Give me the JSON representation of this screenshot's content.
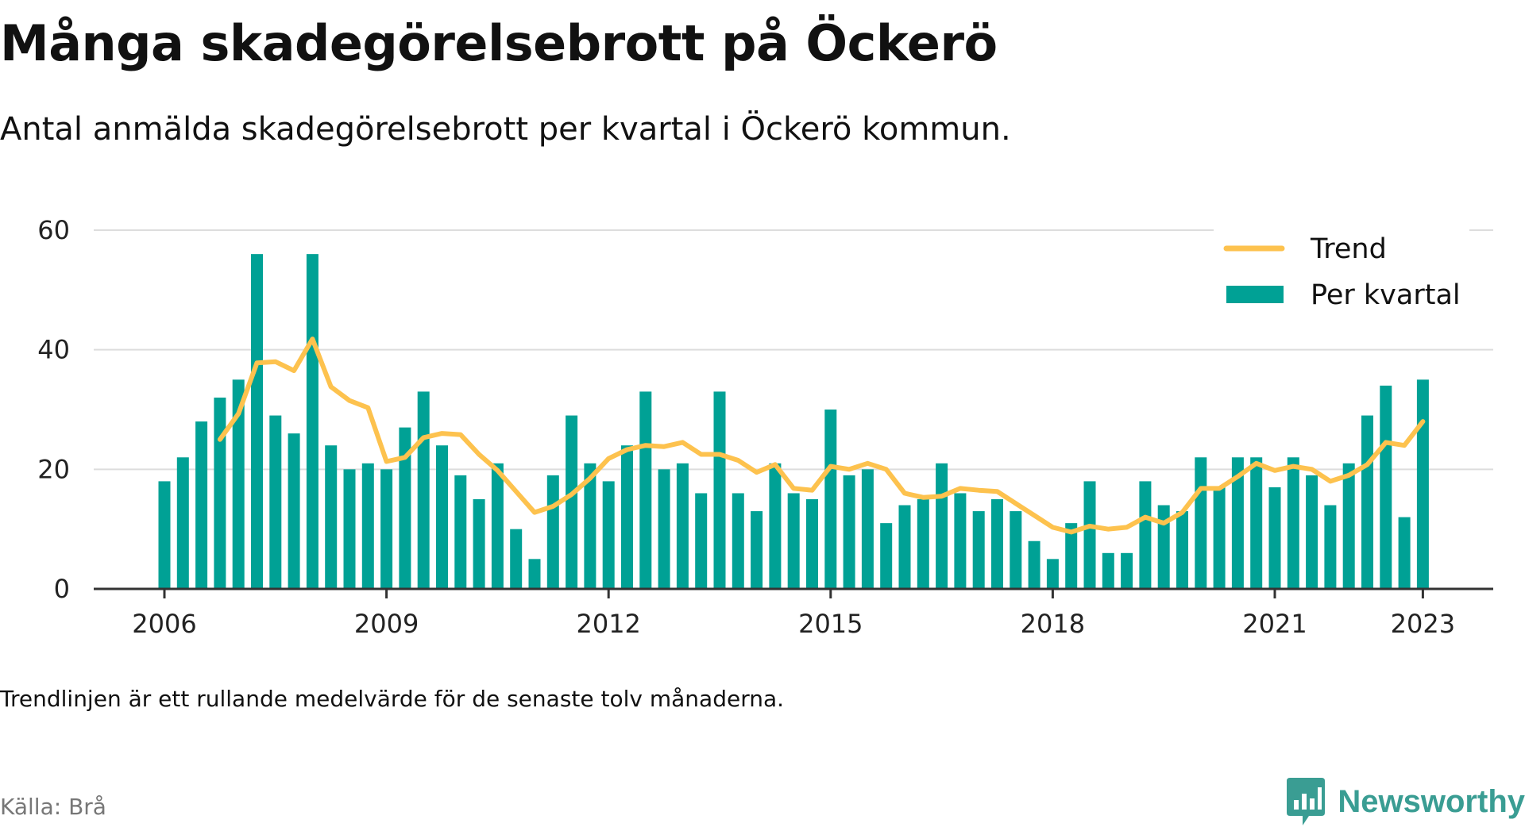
{
  "header": {
    "title": "Många skadegörelsebrott på Öckerö",
    "subtitle": "Antal anmälda skadegörelsebrott per kvartal i Öckerö kommun."
  },
  "footer": {
    "note": "Trendlinjen är ett rullande medelvärde för de senaste tolv månaderna.",
    "source": "Källa: Brå",
    "brand": "Newsworthy"
  },
  "colors": {
    "bars": "#00a195",
    "trend": "#fdc24e",
    "grid": "#dddddd",
    "axis": "#333333",
    "brand": "#3a9d93"
  },
  "chart_data": {
    "type": "bar",
    "x_start": "2006 Q1",
    "x_ticks": [
      "2006",
      "2009",
      "2012",
      "2015",
      "2018",
      "2021",
      "2023"
    ],
    "ylim": [
      0,
      60
    ],
    "y_ticks": [
      0,
      20,
      40,
      60
    ],
    "grid": true,
    "legend_position": "top-right",
    "series": [
      {
        "name": "Per kvartal",
        "type": "bar",
        "values": [
          18,
          22,
          28,
          32,
          35,
          56,
          29,
          26,
          56,
          24,
          20,
          21,
          20,
          27,
          33,
          24,
          19,
          15,
          21,
          10,
          5,
          19,
          29,
          21,
          18,
          24,
          33,
          20,
          21,
          16,
          33,
          16,
          13,
          21,
          16,
          15,
          30,
          19,
          20,
          11,
          14,
          15,
          21,
          16,
          13,
          15,
          13,
          8,
          5,
          11,
          18,
          6,
          6,
          18,
          14,
          13,
          22,
          17,
          22,
          22,
          17,
          22,
          19,
          14,
          21,
          29,
          34,
          12,
          35
        ]
      },
      {
        "name": "Trend",
        "type": "line",
        "values": [
          null,
          null,
          null,
          25,
          29.3,
          37.8,
          38,
          36.5,
          41.8,
          33.8,
          31.5,
          30.3,
          21.3,
          22,
          25.3,
          26,
          25.8,
          22.5,
          19.8,
          16.3,
          12.8,
          13.8,
          15.8,
          18.5,
          21.8,
          23.3,
          24,
          23.8,
          24.5,
          22.5,
          22.5,
          21.5,
          19.5,
          20.8,
          16.8,
          16.5,
          20.5,
          20,
          21,
          20,
          16,
          15.3,
          15.5,
          16.8,
          16.5,
          16.3,
          14.3,
          12.3,
          10.3,
          9.5,
          10.5,
          10,
          10.3,
          12,
          11,
          12.8,
          16.8,
          16.8,
          18.8,
          21,
          19.8,
          20.5,
          20,
          18,
          19,
          20.8,
          24.5,
          24,
          28
        ]
      }
    ]
  }
}
